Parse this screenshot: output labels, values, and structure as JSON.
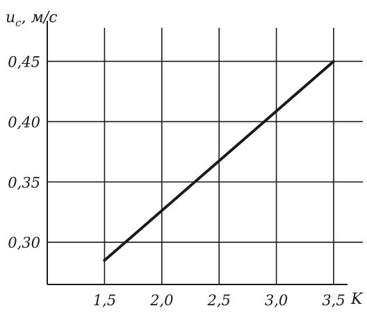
{
  "chart_data": {
    "type": "line",
    "xlabel": "K",
    "ylabel": "u_c, м/с",
    "ylabel_parts": {
      "main": "u",
      "sub": "c",
      "rest": ", м/с"
    },
    "x_ticks": [
      1.5,
      2.0,
      2.5,
      3.0,
      3.5
    ],
    "x_tick_labels": [
      "1,5",
      "2,0",
      "2,5",
      "3,0",
      "3,5"
    ],
    "y_ticks": [
      0.3,
      0.35,
      0.4,
      0.45
    ],
    "y_tick_labels": [
      "0,30",
      "0,35",
      "0,40",
      "0,45"
    ],
    "xlim": [
      1.0,
      3.5
    ],
    "ylim": [
      0.265,
      0.475
    ],
    "grid": true,
    "series": [
      {
        "x": [
          1.5,
          3.5
        ],
        "y": [
          0.285,
          0.45
        ]
      }
    ],
    "colors": {
      "line": "#1a1a1a",
      "grid": "#1a1a1a",
      "background": "#ffffff"
    }
  }
}
